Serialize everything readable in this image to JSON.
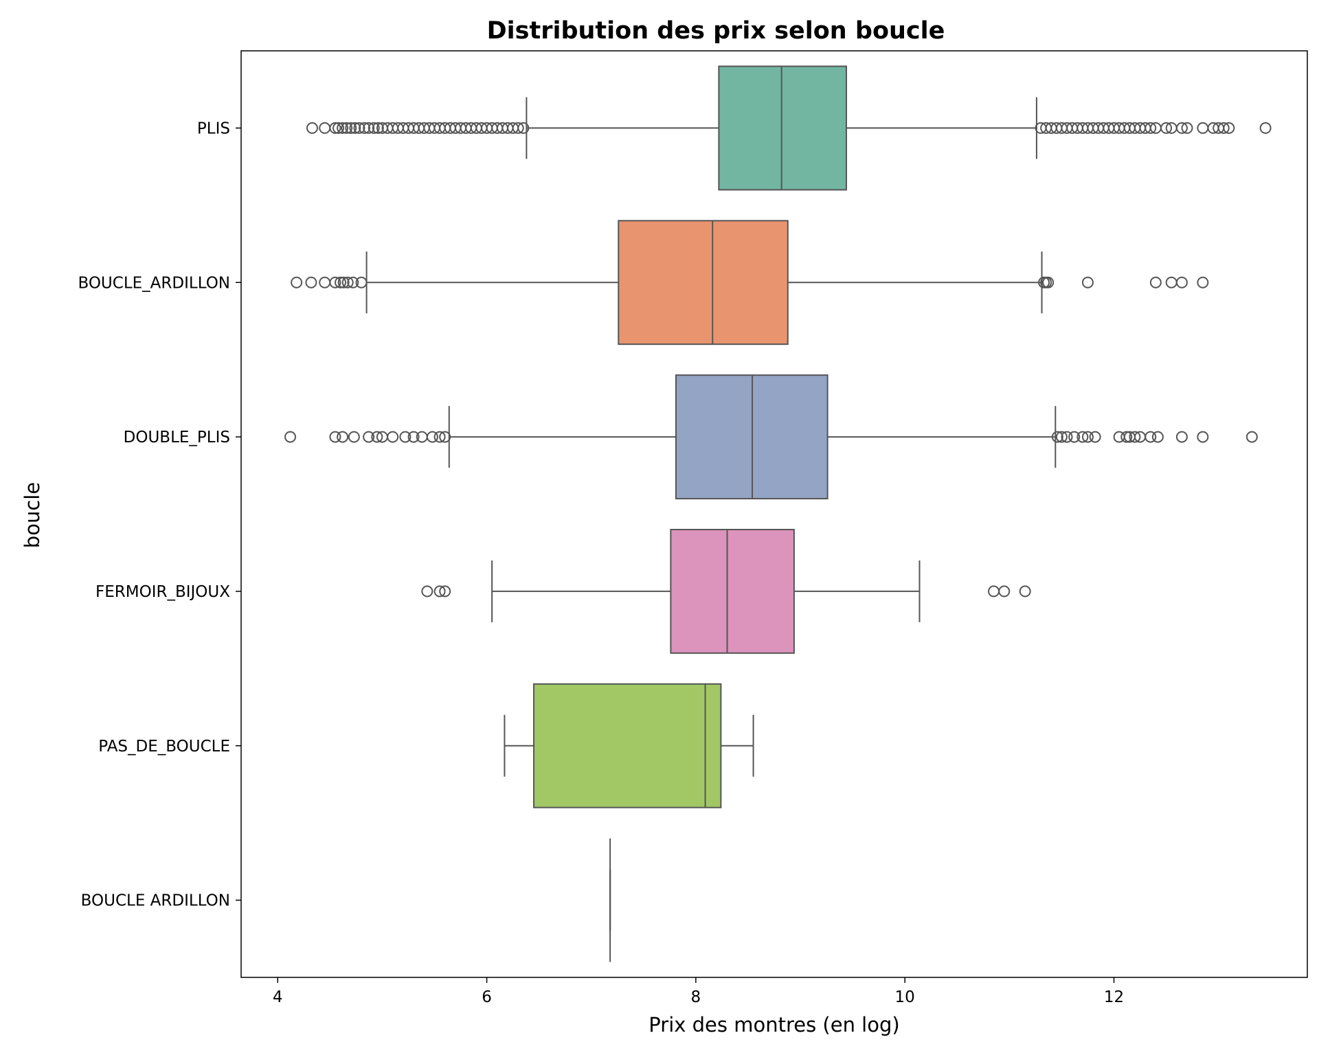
{
  "chart_data": {
    "type": "box",
    "orientation": "horizontal",
    "title": "Distribution des prix selon boucle",
    "xlabel": "Prix des montres (en log)",
    "ylabel": "boucle",
    "xlim": [
      3.65,
      13.85
    ],
    "xticks": [
      4,
      6,
      8,
      10,
      12
    ],
    "grid": false,
    "legend": "none",
    "colors": {
      "median_line": "#555555",
      "whisker": "#555555",
      "outlier_edge": "#555555",
      "frame": "#000000"
    },
    "categories": [
      "PLIS",
      "BOUCLE_ARDILLON",
      "DOUBLE_PLIS",
      "FERMOIR_BIJOUX",
      "PAS_DE_BOUCLE",
      "BOUCLE ARDILLON"
    ],
    "boxes": [
      {
        "category": "PLIS",
        "color": "#72b6a1",
        "whislo": 6.38,
        "q1": 8.22,
        "med": 8.82,
        "q3": 9.44,
        "whishi": 11.26,
        "fliers": [
          4.33,
          4.45,
          4.55,
          4.58,
          4.62,
          4.66,
          4.7,
          4.74,
          4.78,
          4.83,
          4.87,
          4.92,
          4.96,
          5.0,
          5.05,
          5.1,
          5.15,
          5.2,
          5.25,
          5.3,
          5.35,
          5.4,
          5.45,
          5.5,
          5.55,
          5.6,
          5.65,
          5.7,
          5.75,
          5.8,
          5.85,
          5.9,
          5.95,
          6.0,
          6.05,
          6.1,
          6.15,
          6.2,
          6.25,
          6.3,
          6.35,
          11.3,
          11.35,
          11.4,
          11.45,
          11.5,
          11.55,
          11.6,
          11.65,
          11.7,
          11.75,
          11.8,
          11.85,
          11.9,
          11.95,
          12.0,
          12.05,
          12.1,
          12.15,
          12.2,
          12.25,
          12.3,
          12.35,
          12.4,
          12.5,
          12.55,
          12.65,
          12.7,
          12.85,
          12.95,
          13.0,
          13.05,
          13.1,
          13.45
        ]
      },
      {
        "category": "BOUCLE_ARDILLON",
        "color": "#e8956f",
        "whislo": 4.85,
        "q1": 7.26,
        "med": 8.16,
        "q3": 8.88,
        "whishi": 11.31,
        "fliers": [
          4.18,
          4.32,
          4.45,
          4.55,
          4.6,
          4.63,
          4.67,
          4.72,
          4.8,
          11.33,
          11.35,
          11.37,
          11.75,
          12.4,
          12.55,
          12.65,
          12.85
        ]
      },
      {
        "category": "DOUBLE_PLIS",
        "color": "#93a4c4",
        "whislo": 5.64,
        "q1": 7.81,
        "med": 8.54,
        "q3": 9.26,
        "whishi": 11.44,
        "fliers": [
          4.12,
          4.55,
          4.62,
          4.73,
          4.87,
          4.95,
          5.0,
          5.1,
          5.22,
          5.3,
          5.38,
          5.48,
          5.55,
          5.6,
          11.46,
          11.5,
          11.55,
          11.62,
          11.7,
          11.75,
          11.82,
          12.05,
          12.12,
          12.15,
          12.2,
          12.25,
          12.35,
          12.42,
          12.65,
          12.85,
          13.32
        ]
      },
      {
        "category": "FERMOIR_BIJOUX",
        "color": "#dc93bc",
        "whislo": 6.05,
        "q1": 7.76,
        "med": 8.3,
        "q3": 8.94,
        "whishi": 10.14,
        "fliers": [
          5.43,
          5.55,
          5.6,
          10.85,
          10.95,
          11.15
        ]
      },
      {
        "category": "PAS_DE_BOUCLE",
        "color": "#a2c866",
        "whislo": 6.17,
        "q1": 6.45,
        "med": 8.09,
        "q3": 8.24,
        "whishi": 8.55,
        "fliers": []
      },
      {
        "category": "BOUCLE ARDILLON",
        "color": "#555555",
        "whislo": 7.18,
        "q1": 7.18,
        "med": 7.18,
        "q3": 7.18,
        "whishi": 7.18,
        "fliers": []
      }
    ]
  }
}
